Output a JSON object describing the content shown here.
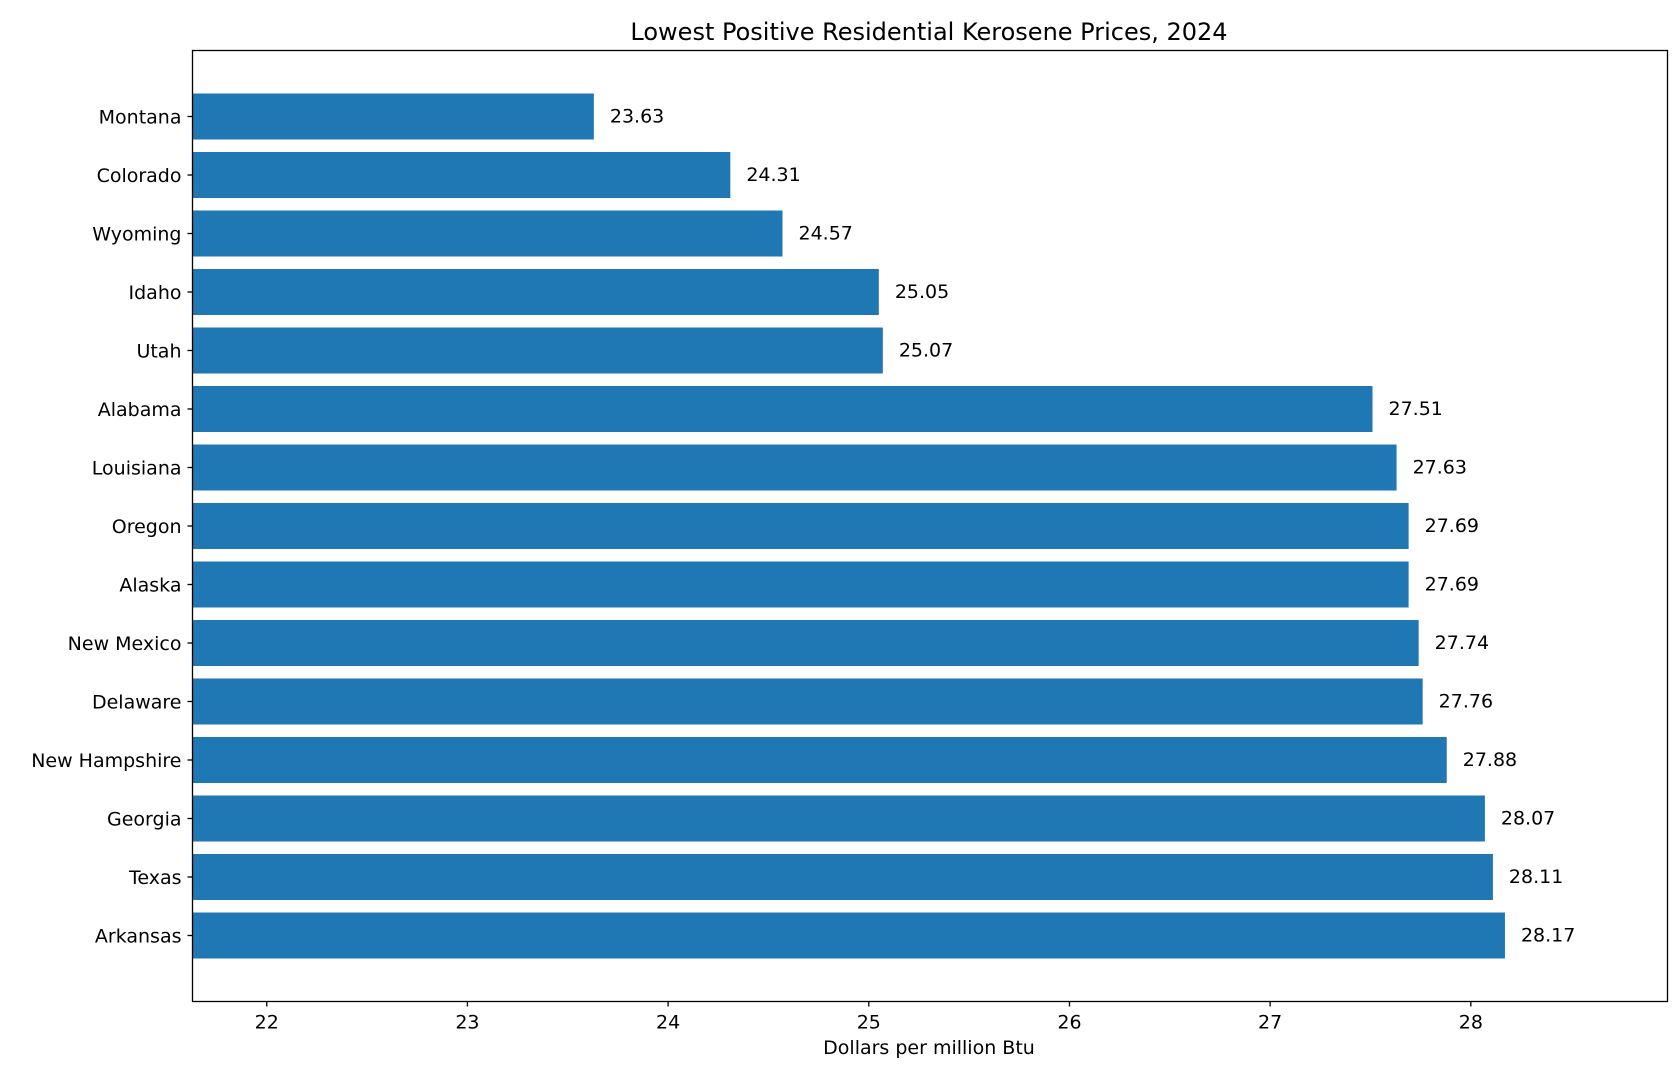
{
  "chart_data": {
    "type": "bar",
    "orientation": "horizontal",
    "title": "Lowest Positive Residential Kerosene Prices, 2024",
    "xlabel": "Dollars per million Btu",
    "ylabel": "",
    "categories": [
      "Montana",
      "Colorado",
      "Wyoming",
      "Idaho",
      "Utah",
      "Alabama",
      "Louisiana",
      "Oregon",
      "Alaska",
      "New Mexico",
      "Delaware",
      "New Hampshire",
      "Georgia",
      "Texas",
      "Arkansas"
    ],
    "values": [
      23.63,
      24.31,
      24.57,
      25.05,
      25.07,
      27.51,
      27.63,
      27.69,
      27.69,
      27.74,
      27.76,
      27.88,
      28.07,
      28.11,
      28.17
    ],
    "value_labels": [
      "23.63",
      "24.31",
      "24.57",
      "25.05",
      "25.07",
      "27.51",
      "27.63",
      "27.69",
      "27.69",
      "27.74",
      "27.76",
      "27.88",
      "28.07",
      "28.11",
      "28.17"
    ],
    "xlim": [
      21.63,
      28.98
    ],
    "xticks": [
      22,
      23,
      24,
      25,
      26,
      27,
      28
    ],
    "xtick_labels": [
      "22",
      "23",
      "24",
      "25",
      "26",
      "27",
      "28"
    ],
    "grid": false,
    "legend": "none",
    "bar_color": "#1f77b4"
  }
}
